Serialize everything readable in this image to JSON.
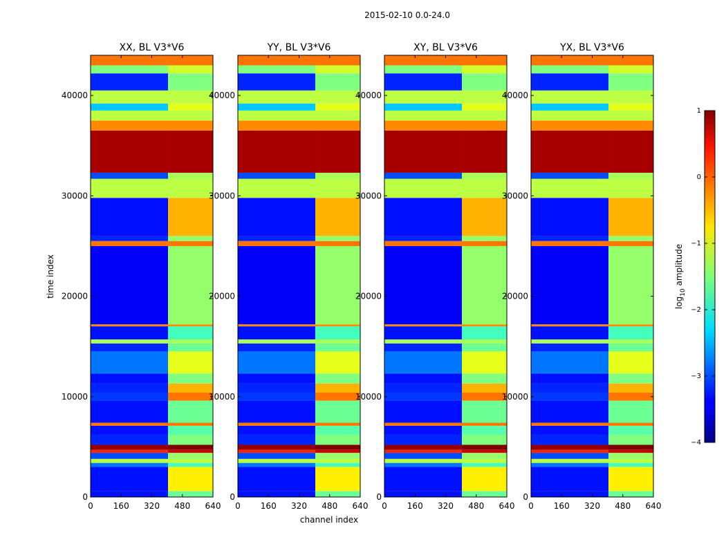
{
  "figure": {
    "suptitle": "2015-02-10 0.0-24.0"
  },
  "chart_data": {
    "type": "heatmap",
    "title": "2015-02-10 0.0-24.0",
    "xlabel": "channel index",
    "ylabel": "time index",
    "xlim": [
      0,
      640
    ],
    "ylim": [
      0,
      44000
    ],
    "xticks": [
      0,
      160,
      320,
      480,
      640
    ],
    "yticks": [
      0,
      10000,
      20000,
      30000,
      40000
    ],
    "colormap": "jet",
    "colorbar": {
      "label": "log10 amplitude",
      "label_main": "log",
      "label_sub": "10",
      "label_rest": " amplitude",
      "range": [
        -4,
        1
      ],
      "ticks": [
        {
          "value": 1,
          "label": "1"
        },
        {
          "value": 0,
          "label": "0"
        },
        {
          "value": -1,
          "label": "−1"
        },
        {
          "value": -2,
          "label": "−2"
        },
        {
          "value": -3,
          "label": "−3"
        },
        {
          "value": -4,
          "label": "−4"
        }
      ]
    },
    "panels": [
      {
        "title": "XX, BL V3*V6",
        "polarization": "XX",
        "band_start_channel": 405
      },
      {
        "title": "YY, BL V3*V6",
        "polarization": "YY",
        "band_start_channel": 405
      },
      {
        "title": "XY, BL V3*V6",
        "polarization": "XY",
        "band_start_channel": 405
      },
      {
        "title": "YX, BL V3*V6",
        "polarization": "YX",
        "band_start_channel": 405
      }
    ],
    "time_bands": [
      {
        "t0": 0,
        "t1": 600,
        "value": -3.3,
        "band": -1.6
      },
      {
        "t0": 600,
        "t1": 3000,
        "value": -3.3,
        "band": -0.8
      },
      {
        "t0": 3000,
        "t1": 3400,
        "value": -2.8,
        "band": -1.8
      },
      {
        "t0": 3400,
        "t1": 3800,
        "value": -1.2,
        "band": -1.2
      },
      {
        "t0": 3800,
        "t1": 4400,
        "value": -3.0,
        "band": -1.4
      },
      {
        "t0": 4400,
        "t1": 4700,
        "value": 0.2,
        "band": 0.6
      },
      {
        "t0": 4700,
        "t1": 5200,
        "value": 0.9,
        "band": 1.0
      },
      {
        "t0": 5200,
        "t1": 6200,
        "value": -3.2,
        "band": -1.5
      },
      {
        "t0": 6200,
        "t1": 7100,
        "value": -3.3,
        "band": -1.7
      },
      {
        "t0": 7100,
        "t1": 7400,
        "value": -0.2,
        "band": -0.2
      },
      {
        "t0": 7400,
        "t1": 9600,
        "value": -3.3,
        "band": -1.6
      },
      {
        "t0": 9600,
        "t1": 10400,
        "value": -3.1,
        "band": -0.2
      },
      {
        "t0": 10400,
        "t1": 11300,
        "value": -3.2,
        "band": -0.5
      },
      {
        "t0": 11300,
        "t1": 12300,
        "value": -3.3,
        "band": -1.5
      },
      {
        "t0": 12300,
        "t1": 14500,
        "value": -2.8,
        "band": -1.0
      },
      {
        "t0": 14500,
        "t1": 15300,
        "value": -3.2,
        "band": -1.6
      },
      {
        "t0": 15300,
        "t1": 15700,
        "value": -1.3,
        "band": -1.3
      },
      {
        "t0": 15700,
        "t1": 17000,
        "value": -3.3,
        "band": -1.8
      },
      {
        "t0": 17000,
        "t1": 17200,
        "value": -0.3,
        "band": -0.3
      },
      {
        "t0": 17200,
        "t1": 25000,
        "value": -3.4,
        "band": -1.4
      },
      {
        "t0": 25000,
        "t1": 25500,
        "value": -0.2,
        "band": -0.2
      },
      {
        "t0": 25500,
        "t1": 26000,
        "value": -3.2,
        "band": -1.4
      },
      {
        "t0": 26000,
        "t1": 29800,
        "value": -3.3,
        "band": -0.5
      },
      {
        "t0": 29800,
        "t1": 31700,
        "value": -1.2,
        "band": -1.2
      },
      {
        "t0": 31700,
        "t1": 32300,
        "value": -3.0,
        "band": -1.3
      },
      {
        "t0": 32300,
        "t1": 36500,
        "value": 0.8,
        "band": 0.8
      },
      {
        "t0": 36500,
        "t1": 37500,
        "value": -0.3,
        "band": -0.3
      },
      {
        "t0": 37500,
        "t1": 38500,
        "value": -1.2,
        "band": -1.2
      },
      {
        "t0": 38500,
        "t1": 39200,
        "value": -2.4,
        "band": -1.0
      },
      {
        "t0": 39200,
        "t1": 40500,
        "value": -1.2,
        "band": -1.2
      },
      {
        "t0": 40500,
        "t1": 42200,
        "value": -3.2,
        "band": -1.5
      },
      {
        "t0": 42200,
        "t1": 43000,
        "value": -1.5,
        "band": -1.1
      },
      {
        "t0": 43000,
        "t1": 44000,
        "value": -0.2,
        "band": -0.2
      }
    ]
  }
}
